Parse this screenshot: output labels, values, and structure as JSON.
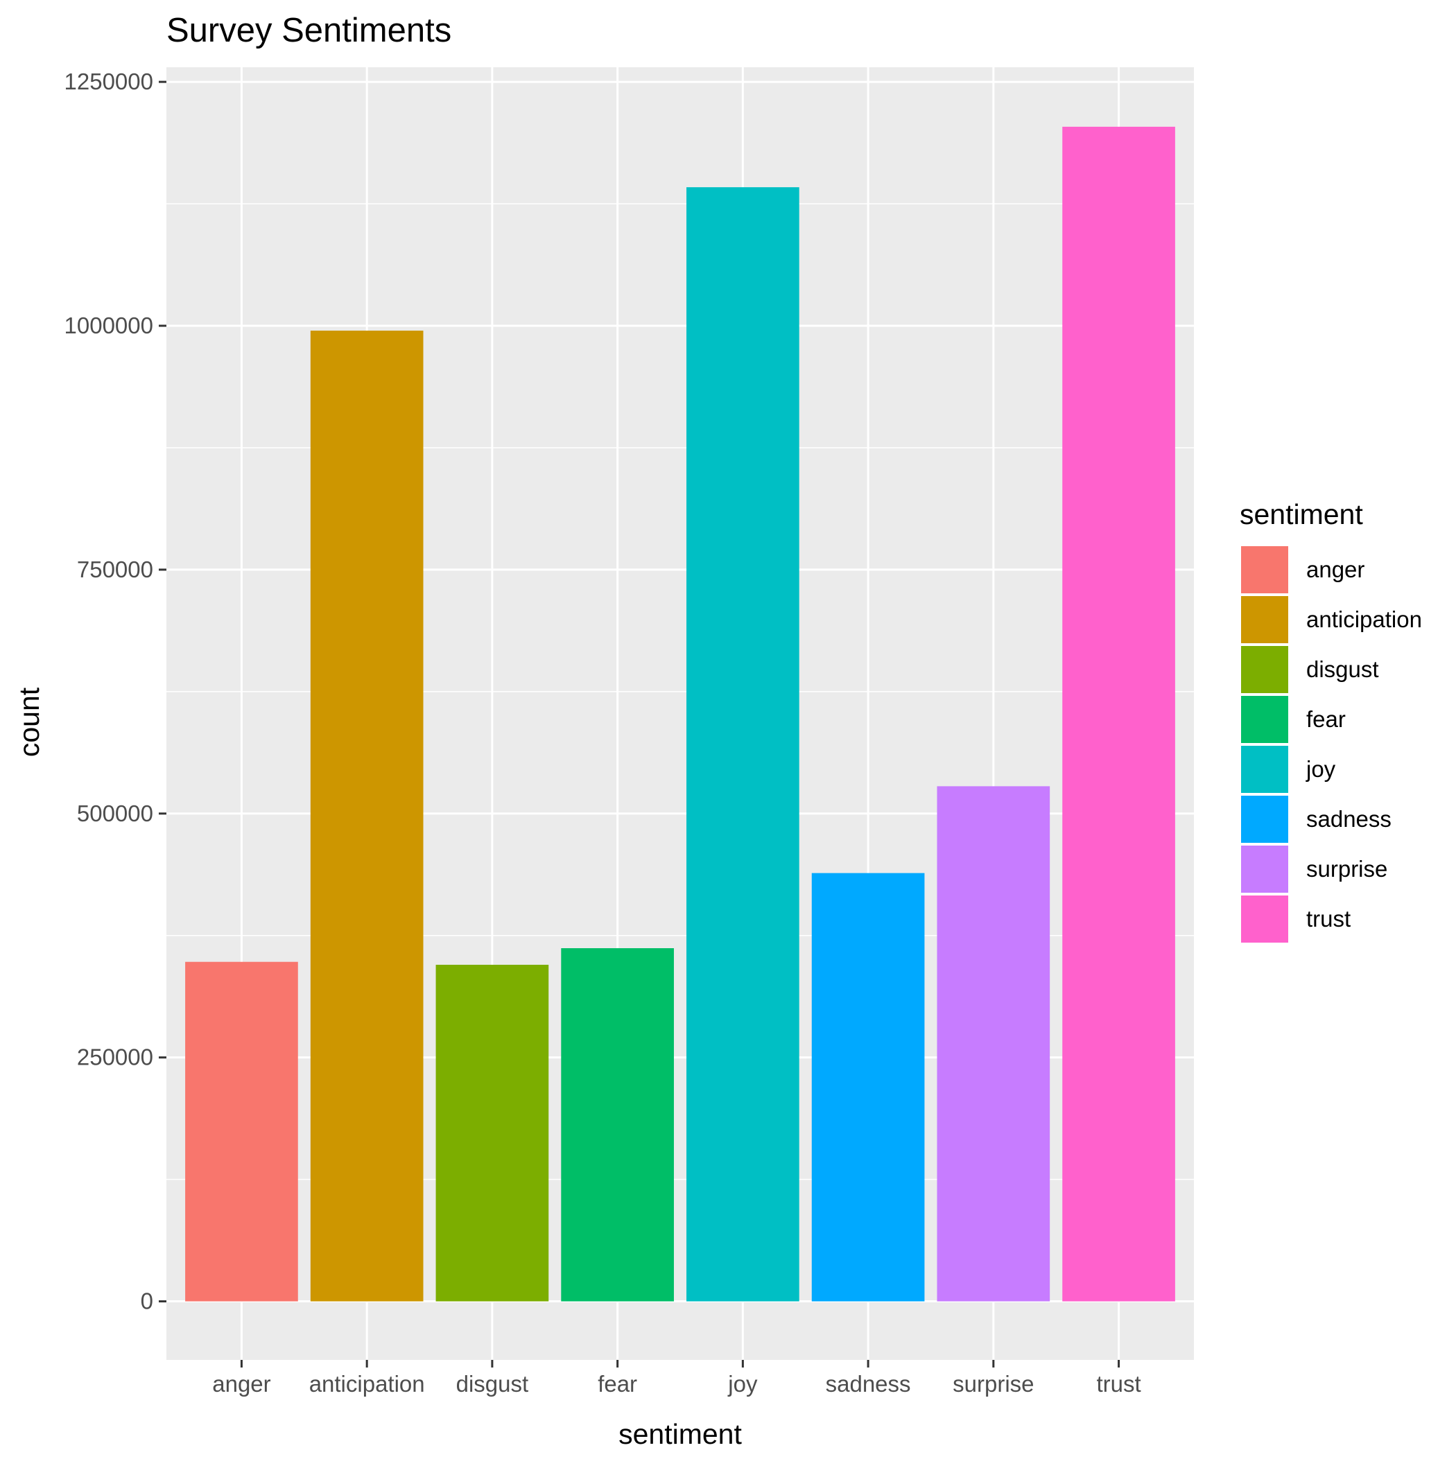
{
  "chart_data": {
    "type": "bar",
    "title": "Survey Sentiments",
    "xlabel": "sentiment",
    "ylabel": "count",
    "categories": [
      "anger",
      "anticipation",
      "disgust",
      "fear",
      "joy",
      "sadness",
      "surprise",
      "trust"
    ],
    "values": [
      348000,
      995000,
      345000,
      362000,
      1142000,
      439000,
      528000,
      1204000
    ],
    "colors": [
      "#F8766D",
      "#CD9600",
      "#7CAE00",
      "#00BE67",
      "#00BFC4",
      "#00A9FF",
      "#C77CFF",
      "#FF61CC"
    ],
    "ylim": [
      -60000,
      1265000
    ],
    "yticks": [
      0,
      250000,
      500000,
      750000,
      1000000,
      1250000
    ],
    "ytick_labels": [
      "0",
      "250000",
      "500000",
      "750000",
      "1000000",
      "1250000"
    ],
    "grid": true,
    "panel_background": "#EBEBEB",
    "legend": {
      "title": "sentiment",
      "position": "right",
      "entries": [
        "anger",
        "anticipation",
        "disgust",
        "fear",
        "joy",
        "sadness",
        "surprise",
        "trust"
      ]
    }
  }
}
